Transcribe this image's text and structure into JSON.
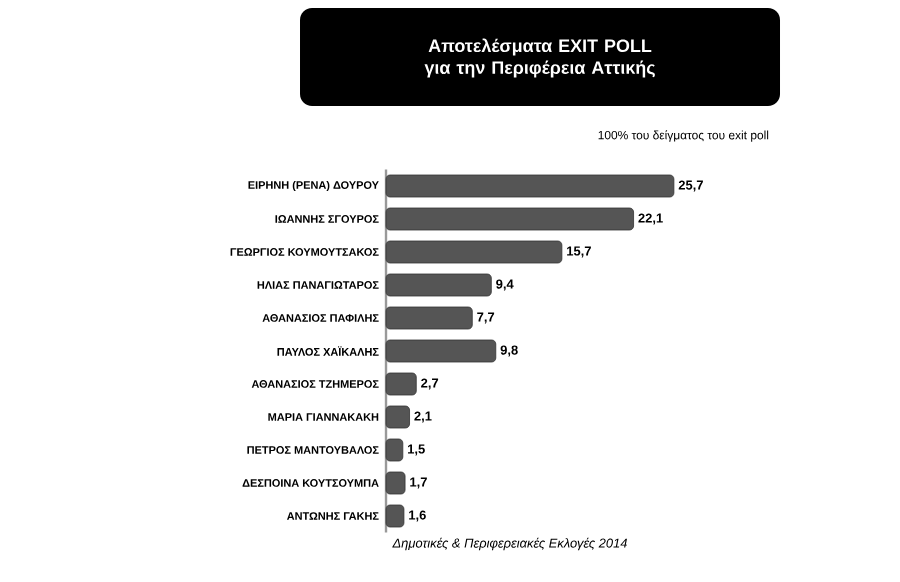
{
  "chart_data": {
    "type": "bar",
    "orientation": "horizontal",
    "title": "Αποτελέσματα EXIT POLL για την Περιφέρεια Αττικής",
    "categories": [
      "ΕΙΡΗΝΗ (ΡΕΝΑ) ΔΟΥΡΟΥ",
      "ΙΩΑΝΝΗΣ ΣΓΟΥΡΟΣ",
      "ΓΕΩΡΓΙΟΣ ΚΟΥΜΟΥΤΣΑΚΟΣ",
      "ΗΛΙΑΣ ΠΑΝΑΓΙΩΤΑΡΟΣ",
      "ΑΘΑΝΑΣΙΟΣ ΠΑΦΙΛΗΣ",
      "ΠΑΥΛΟΣ ΧΑΪΚΑΛΗΣ",
      "ΑΘΑΝΑΣΙΟΣ ΤΖΗΜΕΡΟΣ",
      "ΜΑΡΙΑ ΓΙΑΝΝΑΚΑΚΗ",
      "ΠΕΤΡΟΣ ΜΑΝΤΟΥΒΑΛΟΣ",
      "ΔΕΣΠΟΙΝΑ ΚΟΥΤΣΟΥΜΠΑ",
      "ΑΝΤΩΝΗΣ ΓΑΚΗΣ"
    ],
    "values": [
      25.7,
      22.1,
      15.7,
      9.4,
      7.7,
      9.8,
      2.7,
      2.1,
      1.5,
      1.7,
      1.6
    ],
    "value_labels": [
      "25,7",
      "22,1",
      "15,7",
      "9,4",
      "7,7",
      "9,8",
      "2,7",
      "2,1",
      "1,5",
      "1,7",
      "1,6"
    ],
    "color": "#555555",
    "annotations": [
      "100% του δείγματος του exit poll",
      "Δημοτικές & Περιφερειακές Εκλογές 2014"
    ]
  }
}
